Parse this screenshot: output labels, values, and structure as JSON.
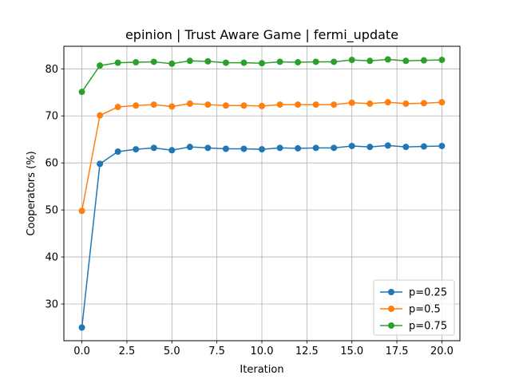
{
  "chart_data": {
    "type": "line",
    "title": "epinion | Trust Aware Game | fermi_update",
    "xlabel": "Iteration",
    "ylabel": "Cooperators (%)",
    "xlim": [
      -1.0,
      21.0
    ],
    "ylim": [
      22.2,
      84.8
    ],
    "xticks": [
      0.0,
      2.5,
      5.0,
      7.5,
      10.0,
      12.5,
      15.0,
      17.5,
      20.0
    ],
    "xtick_labels": [
      "0.0",
      "2.5",
      "5.0",
      "7.5",
      "10.0",
      "12.5",
      "15.0",
      "17.5",
      "20.0"
    ],
    "yticks": [
      30,
      40,
      50,
      60,
      70,
      80
    ],
    "ytick_labels": [
      "30",
      "40",
      "50",
      "60",
      "70",
      "80"
    ],
    "grid": true,
    "legend_position": "lower-right",
    "x": [
      0,
      1,
      2,
      3,
      4,
      5,
      6,
      7,
      8,
      9,
      10,
      11,
      12,
      13,
      14,
      15,
      16,
      17,
      18,
      19,
      20
    ],
    "series": [
      {
        "name": "p=0.25",
        "color": "#1f77b4",
        "values": [
          25.0,
          59.8,
          62.4,
          62.9,
          63.2,
          62.7,
          63.4,
          63.2,
          63.0,
          63.0,
          62.9,
          63.2,
          63.1,
          63.2,
          63.2,
          63.6,
          63.4,
          63.7,
          63.4,
          63.5,
          63.6
        ]
      },
      {
        "name": "p=0.5",
        "color": "#ff7f0e",
        "values": [
          49.8,
          70.1,
          71.9,
          72.2,
          72.4,
          72.0,
          72.6,
          72.4,
          72.2,
          72.2,
          72.1,
          72.4,
          72.4,
          72.4,
          72.4,
          72.8,
          72.6,
          72.9,
          72.6,
          72.7,
          72.9
        ]
      },
      {
        "name": "p=0.75",
        "color": "#2ca02c",
        "values": [
          75.1,
          80.7,
          81.3,
          81.4,
          81.5,
          81.1,
          81.7,
          81.6,
          81.3,
          81.3,
          81.2,
          81.5,
          81.4,
          81.5,
          81.5,
          81.9,
          81.7,
          82.0,
          81.7,
          81.8,
          81.9
        ]
      }
    ]
  }
}
